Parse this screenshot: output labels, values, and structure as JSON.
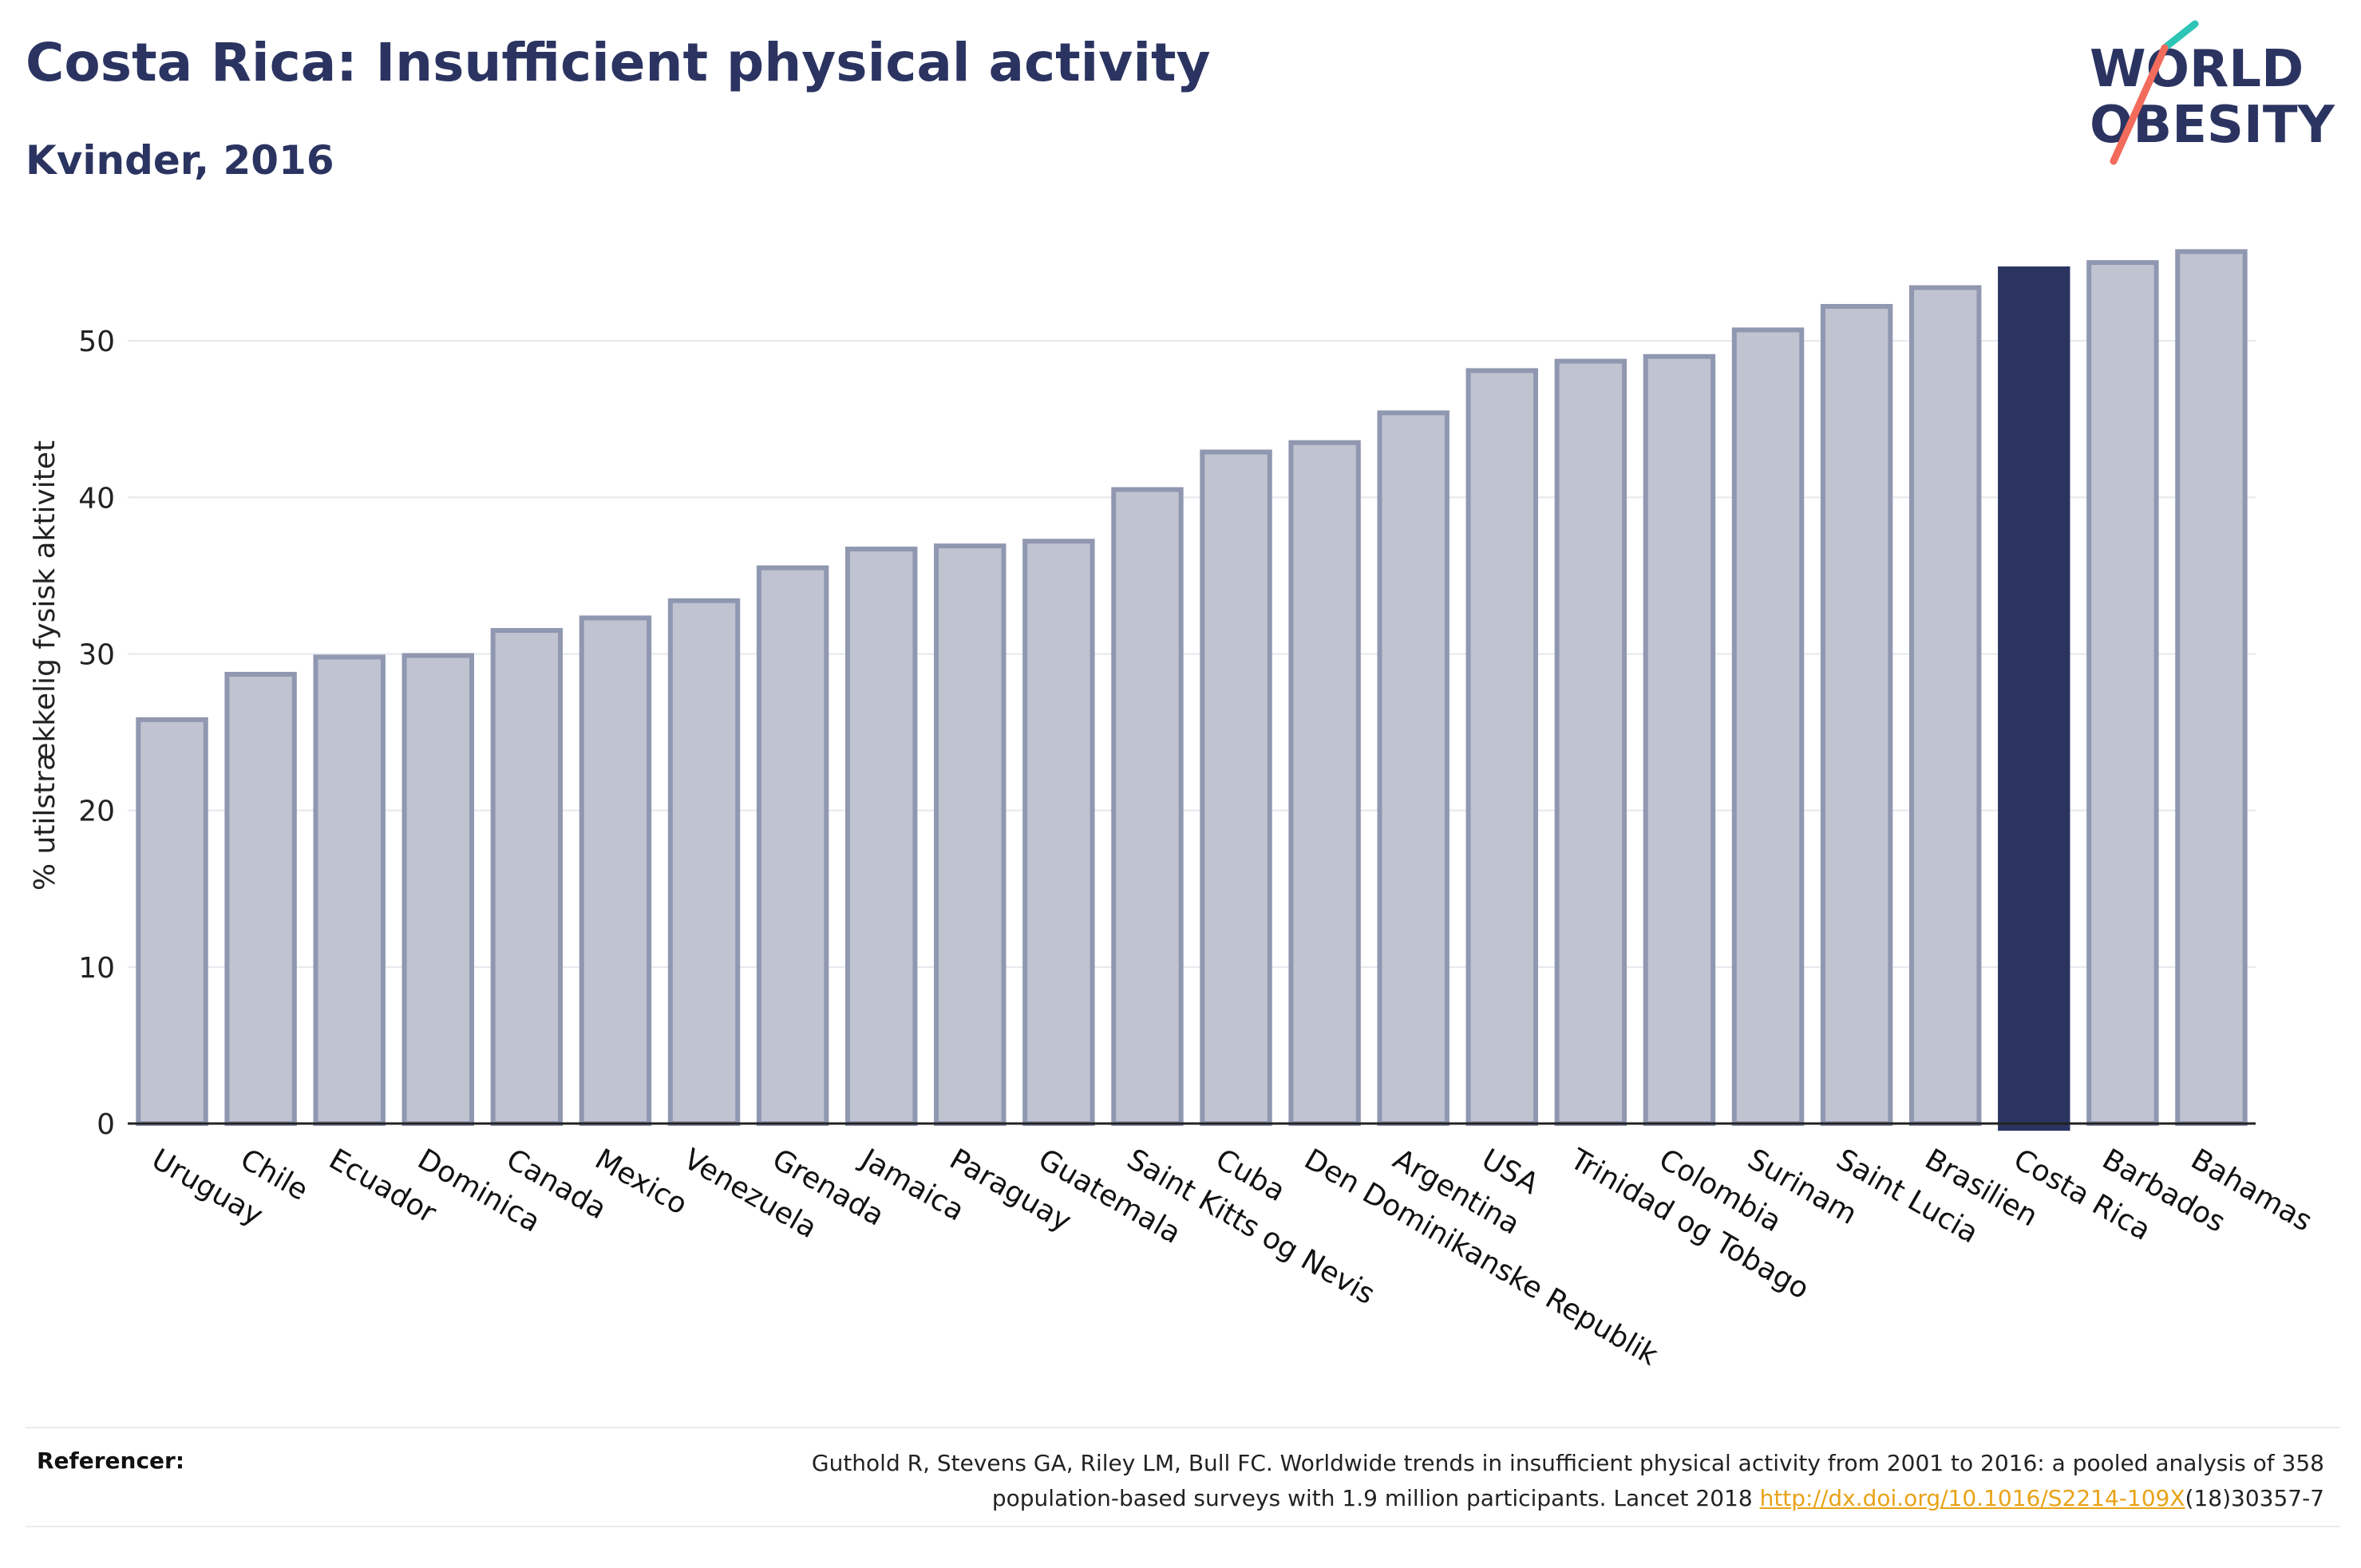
{
  "header": {
    "title": "Costa Rica: Insufficient physical activity",
    "subtitle": "Kvinder, 2016"
  },
  "logo": {
    "line1": "WORLD",
    "line2": "OBESITY",
    "colors": {
      "text": "#2b3461",
      "slash_teal": "#2ec4b6",
      "slash_coral": "#f26b5b"
    }
  },
  "chart_data": {
    "type": "bar",
    "title": "Costa Rica: Insufficient physical activity",
    "subtitle": "Kvinder, 2016",
    "xlabel": "",
    "ylabel": "% utilstrækkelig fysisk aktivitet",
    "ylim": [
      0,
      57.5
    ],
    "yticks": [
      0,
      10,
      20,
      30,
      40,
      50
    ],
    "grid": true,
    "highlight": "Costa Rica",
    "colors": {
      "bar": "#c0c3d0",
      "bar_outline": "#9097b0",
      "highlight": "#2b3461",
      "axis": "#222222",
      "grid": "#e6e8ee"
    },
    "categories": [
      "Uruguay",
      "Chile",
      "Ecuador",
      "Dominica",
      "Canada",
      "Mexico",
      "Venezuela",
      "Grenada",
      "Jamaica",
      "Paraguay",
      "Guatemala",
      "Saint Kitts og Nevis",
      "Cuba",
      "Den Dominikanske Republik",
      "Argentina",
      "USA",
      "Trinidad og Tobago",
      "Colombia",
      "Surinam",
      "Saint Lucia",
      "Brasilien",
      "Costa Rica",
      "Barbados",
      "Bahamas"
    ],
    "values": [
      25.8,
      28.7,
      29.8,
      29.9,
      31.5,
      32.3,
      33.4,
      35.5,
      36.7,
      36.9,
      37.2,
      40.5,
      42.9,
      43.5,
      45.4,
      48.1,
      48.7,
      49.0,
      50.7,
      52.2,
      53.4,
      54.6,
      55.0,
      55.7
    ]
  },
  "references": {
    "label": "Referencer:",
    "text_line1": "Guthold R, Stevens GA, Riley LM, Bull FC. Worldwide trends in insufficient physical activity from 2001 to 2016: a pooled analysis of 358",
    "text_line2_before": "population-based surveys with 1.9 million participants. Lancet 2018 ",
    "link": "http://dx.doi.org/10.1016/S2214-109X",
    "text_line2_after": "(18)30357-7"
  }
}
